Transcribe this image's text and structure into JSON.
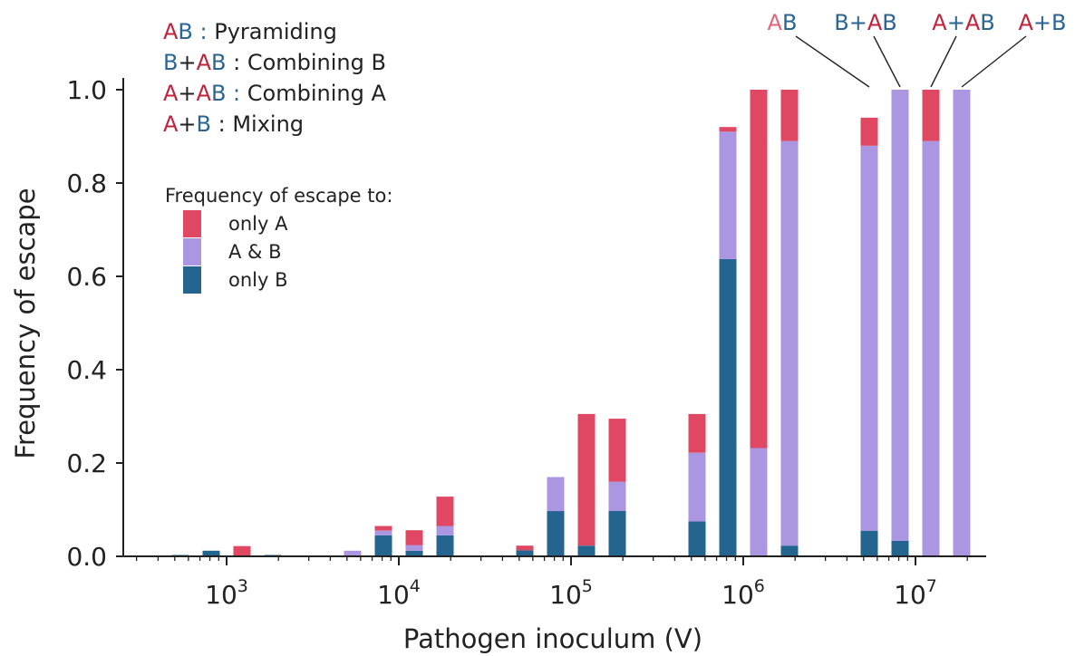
{
  "chart_data": {
    "type": "bar",
    "stacked": true,
    "xlabel": "Pathogen inoculum (V)",
    "ylabel": "Frequency of escape",
    "ylim": [
      0,
      1.0
    ],
    "x_scale": "log",
    "x_ticks": [
      {
        "value": 1000,
        "base": "10",
        "exp": "3"
      },
      {
        "value": 10000,
        "base": "10",
        "exp": "4"
      },
      {
        "value": 100000,
        "base": "10",
        "exp": "5"
      },
      {
        "value": 1000000,
        "base": "10",
        "exp": "6"
      },
      {
        "value": 10000000,
        "base": "10",
        "exp": "7"
      }
    ],
    "y_ticks": [
      "0.0",
      "0.2",
      "0.4",
      "0.6",
      "0.8",
      "1.0"
    ],
    "colors": {
      "only_a": "#e04762",
      "a_and_b": "#ab96e2",
      "only_b": "#246590"
    },
    "legend": {
      "title": "Frequency of escape to:",
      "entries": [
        {
          "key": "only_a",
          "label": "only A"
        },
        {
          "key": "a_and_b",
          "label": "A & B"
        },
        {
          "key": "only_b",
          "label": "only B"
        }
      ]
    },
    "strategy_legend": [
      {
        "parts": [
          {
            "t": "A",
            "c": "red"
          },
          {
            "t": "B",
            "c": "blue"
          },
          {
            "t": " : ",
            "c": "blue"
          },
          {
            "t": "Pyramiding",
            "c": "dark"
          }
        ]
      },
      {
        "parts": [
          {
            "t": "B",
            "c": "blue"
          },
          {
            "t": "+",
            "c": "dark"
          },
          {
            "t": "A",
            "c": "red"
          },
          {
            "t": "B",
            "c": "blue"
          },
          {
            "t": " : Combining B",
            "c": "dark"
          }
        ]
      },
      {
        "parts": [
          {
            "t": "A",
            "c": "red"
          },
          {
            "t": "+",
            "c": "dark"
          },
          {
            "t": "A",
            "c": "red"
          },
          {
            "t": "B",
            "c": "blue"
          },
          {
            "t": " : ",
            "c": "blue"
          },
          {
            "t": "Combining A",
            "c": "dark"
          }
        ]
      },
      {
        "parts": [
          {
            "t": "A",
            "c": "red"
          },
          {
            "t": "+",
            "c": "dark"
          },
          {
            "t": "B",
            "c": "blue"
          },
          {
            "t": " : Mixing",
            "c": "dark"
          }
        ]
      }
    ],
    "group_labels": [
      {
        "parts": [
          {
            "t": "A",
            "c": "pink"
          },
          {
            "t": "B",
            "c": "blue"
          }
        ]
      },
      {
        "parts": [
          {
            "t": "B",
            "c": "blue"
          },
          {
            "t": "+",
            "c": "blue"
          },
          {
            "t": "A",
            "c": "red"
          },
          {
            "t": "B",
            "c": "blue"
          }
        ]
      },
      {
        "parts": [
          {
            "t": "A",
            "c": "red"
          },
          {
            "t": "+",
            "c": "blue"
          },
          {
            "t": "A",
            "c": "red"
          },
          {
            "t": "B",
            "c": "blue"
          }
        ]
      },
      {
        "parts": [
          {
            "t": "A",
            "c": "red"
          },
          {
            "t": "+",
            "c": "blue"
          },
          {
            "t": "B",
            "c": "blue"
          }
        ]
      }
    ],
    "strategies": [
      "AB",
      "B+AB",
      "A+AB",
      "A+B"
    ],
    "groups": [
      {
        "inoculum": 1000,
        "bars": [
          {
            "only_b": 0.003,
            "a_and_b": 0.0,
            "only_a": 0.0
          },
          {
            "only_b": 0.012,
            "a_and_b": 0.0,
            "only_a": 0.0
          },
          {
            "only_b": 0.0,
            "a_and_b": 0.0,
            "only_a": 0.022
          },
          {
            "only_b": 0.003,
            "a_and_b": 0.0,
            "only_a": 0.0
          }
        ]
      },
      {
        "inoculum": 10000,
        "bars": [
          {
            "only_b": 0.0,
            "a_and_b": 0.012,
            "only_a": 0.0
          },
          {
            "only_b": 0.045,
            "a_and_b": 0.01,
            "only_a": 0.01
          },
          {
            "only_b": 0.012,
            "a_and_b": 0.012,
            "only_a": 0.032
          },
          {
            "only_b": 0.045,
            "a_and_b": 0.02,
            "only_a": 0.063
          }
        ]
      },
      {
        "inoculum": 100000,
        "bars": [
          {
            "only_b": 0.013,
            "a_and_b": 0.0,
            "only_a": 0.01
          },
          {
            "only_b": 0.097,
            "a_and_b": 0.073,
            "only_a": 0.0
          },
          {
            "only_b": 0.023,
            "a_and_b": 0.0,
            "only_a": 0.282
          },
          {
            "only_b": 0.097,
            "a_and_b": 0.063,
            "only_a": 0.135
          }
        ]
      },
      {
        "inoculum": 1000000,
        "bars": [
          {
            "only_b": 0.075,
            "a_and_b": 0.147,
            "only_a": 0.083
          },
          {
            "only_b": 0.637,
            "a_and_b": 0.273,
            "only_a": 0.01
          },
          {
            "only_b": 0.0,
            "a_and_b": 0.232,
            "only_a": 0.768
          },
          {
            "only_b": 0.023,
            "a_and_b": 0.867,
            "only_a": 0.11
          }
        ]
      },
      {
        "inoculum": 10000000,
        "bars": [
          {
            "only_b": 0.055,
            "a_and_b": 0.825,
            "only_a": 0.06
          },
          {
            "only_b": 0.033,
            "a_and_b": 0.967,
            "only_a": 0.0
          },
          {
            "only_b": 0.0,
            "a_and_b": 0.89,
            "only_a": 0.11
          },
          {
            "only_b": 0.0,
            "a_and_b": 1.0,
            "only_a": 0.0
          }
        ]
      }
    ]
  }
}
